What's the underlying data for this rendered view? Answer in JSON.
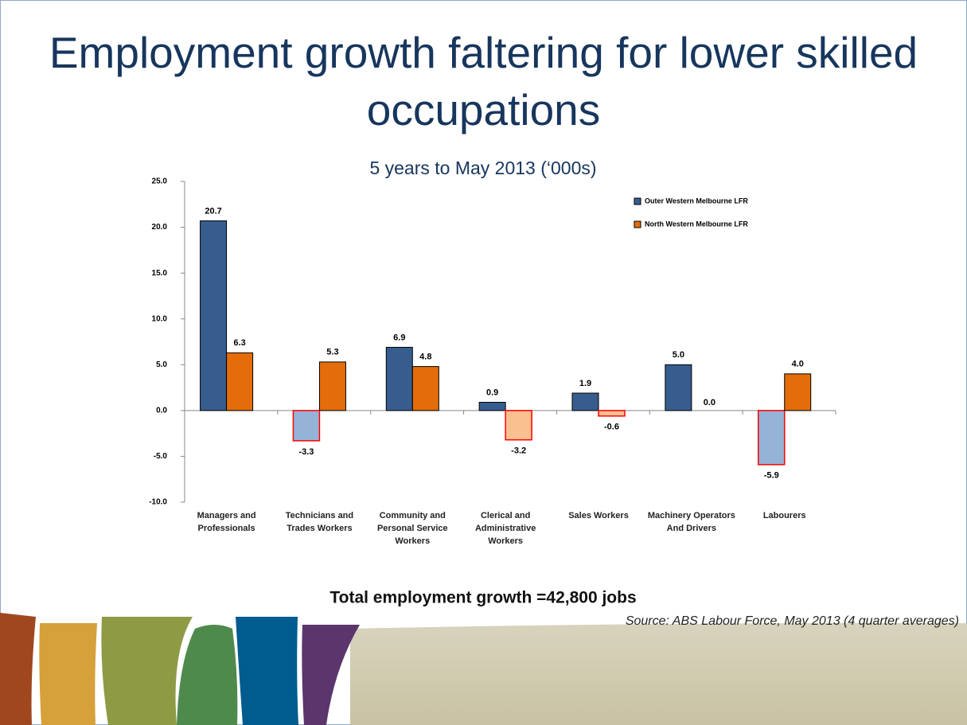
{
  "chart_data": {
    "type": "bar",
    "title": "Employment growth faltering for lower skilled occupations",
    "subtitle": "5 years to May 2013 (‘000s)",
    "categories": [
      "Managers and Professionals",
      "Technicians and Trades Workers",
      "Community and Personal Service Workers",
      "Clerical and Administrative Workers",
      "Sales Workers",
      "Machinery Operators And Drivers",
      "Labourers"
    ],
    "series": [
      {
        "name": "Outer Western Melbourne LFR",
        "color": "#375d8f",
        "negative_color": "#95b3d7",
        "negative_edge_color": "#ff0000",
        "values": [
          20.7,
          -3.3,
          6.9,
          0.9,
          1.9,
          5.0,
          -5.9
        ],
        "value_labels": [
          "20.7",
          "-3.3",
          "6.9",
          "0.9",
          "1.9",
          "5.0",
          "-5.9"
        ]
      },
      {
        "name": "North Western Melbourne LFR",
        "color": "#e46c0a",
        "negative_color": "#fac090",
        "negative_edge_color": "#ff0000",
        "values": [
          6.3,
          5.3,
          4.8,
          -3.2,
          -0.6,
          0.0,
          4.0
        ],
        "value_labels": [
          "6.3",
          "5.3",
          "4.8",
          "-3.2",
          "-0.6",
          "0.0",
          "4.0"
        ]
      }
    ],
    "ylim": [
      -10,
      25
    ],
    "yticks": [
      {
        "value": -10,
        "label": "-10.0"
      },
      {
        "value": -5,
        "label": "-5.0"
      },
      {
        "value": 0,
        "label": "0.0"
      },
      {
        "value": 5,
        "label": "5.0"
      },
      {
        "value": 10,
        "label": "10.0"
      },
      {
        "value": 15,
        "label": "15.0"
      },
      {
        "value": 20,
        "label": "20.0"
      },
      {
        "value": 25,
        "label": "25.0"
      }
    ],
    "grid": false,
    "legend": "upper right",
    "annotation": "Total employment growth =42,800 jobs",
    "source": "Source: ABS Labour Force, May 2013 (4 quarter averages)"
  }
}
